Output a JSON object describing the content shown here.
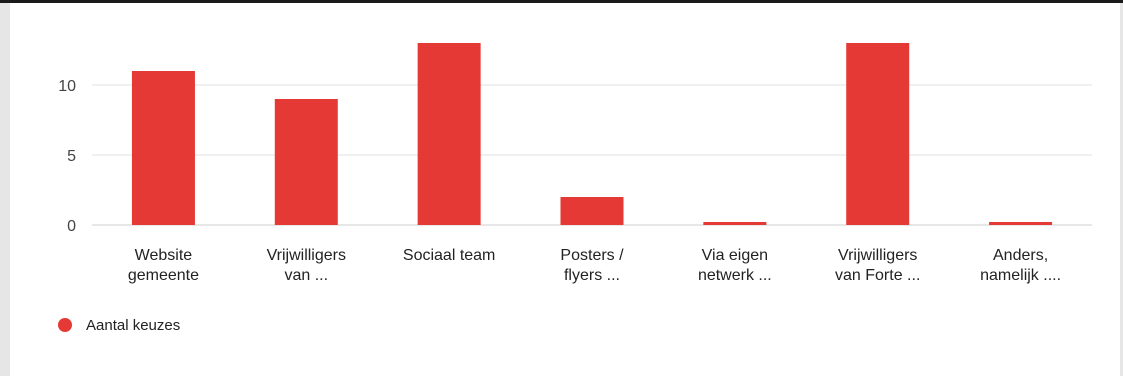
{
  "chart_data": {
    "type": "bar",
    "categories": [
      [
        "Website",
        "gemeente"
      ],
      [
        "Vrijwilligers",
        "van ..."
      ],
      [
        "Sociaal team"
      ],
      [
        "Posters /",
        "flyers ..."
      ],
      [
        "Via eigen",
        "netwerk ..."
      ],
      [
        "Vrijwilligers",
        "van Forte ..."
      ],
      [
        "Anders,",
        "namelijk ...."
      ]
    ],
    "series": [
      {
        "name": "Aantal keuzes",
        "values": [
          11,
          9,
          13,
          2,
          0,
          13,
          0
        ]
      }
    ],
    "ylim": [
      0,
      13
    ],
    "yticks": [
      0,
      5,
      10
    ],
    "grid": true,
    "legend": "bottom-left",
    "bar_color": "#e53935",
    "grid_color": "#e2e2e2"
  }
}
